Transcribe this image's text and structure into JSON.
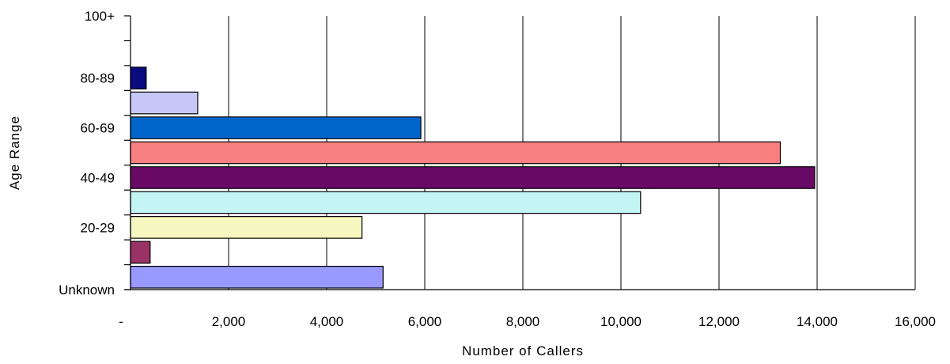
{
  "chart_data": {
    "type": "bar",
    "orientation": "horizontal",
    "xlabel": "Number of Callers",
    "ylabel": "Age Range",
    "xlim": [
      0,
      16000
    ],
    "x_ticks": [
      0,
      2000,
      4000,
      6000,
      8000,
      10000,
      12000,
      14000,
      16000
    ],
    "x_tick_labels": [
      "-",
      "2,000",
      "4,000",
      "6,000",
      "8,000",
      "10,000",
      "12,000",
      "14,000",
      "16,000"
    ],
    "categories": [
      "Unknown",
      "",
      "20-29",
      "",
      "40-49",
      "",
      "60-69",
      "",
      "80-89",
      "",
      "100+"
    ],
    "y_tick_labels_shown": [
      "Unknown",
      "20-29",
      "40-49",
      "60-69",
      "80-89",
      "100+"
    ],
    "values": [
      5150,
      400,
      4720,
      10400,
      13950,
      13250,
      5920,
      1370,
      320,
      0,
      0
    ],
    "bar_colors": [
      "#9999ff",
      "#993366",
      "#f6f6c0",
      "#c4f5f5",
      "#6a0a66",
      "#f88080",
      "#0066cc",
      "#c8c8f8",
      "#0b0b80",
      "#ffffff",
      "#ffffff"
    ],
    "grid": "vertical",
    "legend": "none"
  }
}
